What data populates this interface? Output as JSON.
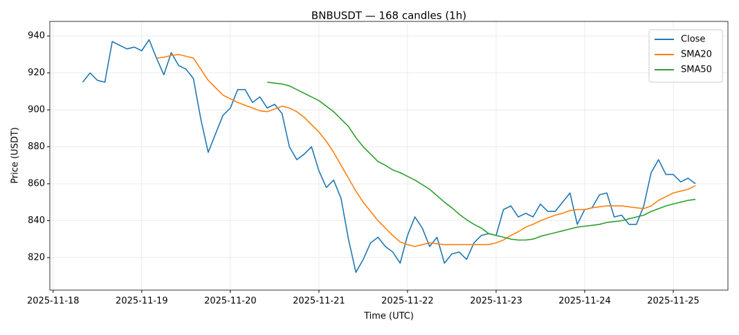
{
  "chart_data": {
    "type": "line",
    "title": "BNBUSDT — 168 candles (1h)",
    "xlabel": "Time (UTC)",
    "ylabel": "Price (USDT)",
    "x": [
      8,
      10,
      12,
      14,
      16,
      18,
      20,
      22,
      24,
      26,
      28,
      30,
      32,
      34,
      36,
      38,
      40,
      42,
      44,
      46,
      48,
      50,
      52,
      54,
      56,
      58,
      60,
      62,
      64,
      66,
      68,
      70,
      72,
      74,
      76,
      78,
      80,
      82,
      84,
      86,
      88,
      90,
      92,
      94,
      96,
      98,
      100,
      102,
      104,
      106,
      108,
      110,
      112,
      114,
      116,
      118,
      120,
      122,
      124,
      126,
      128,
      130,
      132,
      134,
      136,
      138,
      140,
      142,
      144,
      146,
      148,
      150,
      152,
      154,
      156,
      158,
      160,
      162,
      164,
      166,
      168,
      170,
      172,
      174
    ],
    "series": [
      {
        "name": "Close",
        "color": "#1f77b4",
        "values": [
          915,
          920,
          916,
          915,
          937,
          935,
          933,
          934,
          932,
          938,
          928,
          919,
          931,
          924,
          922,
          917,
          895,
          877,
          887,
          897,
          901,
          911,
          911,
          904,
          907,
          901,
          903,
          898,
          880,
          873,
          876,
          880,
          867,
          858,
          862,
          852,
          830,
          812,
          819,
          828,
          831,
          826,
          823,
          817,
          832,
          842,
          836,
          826,
          831,
          817,
          822,
          823,
          819,
          828,
          832,
          833,
          832,
          846,
          848,
          842,
          844,
          842,
          849,
          845,
          845,
          850,
          855,
          838,
          846,
          847,
          854,
          855,
          842,
          843,
          838,
          838,
          848,
          866,
          873,
          865,
          865,
          861,
          863,
          860
        ]
      },
      {
        "name": "SMA20",
        "color": "#ff7f0e",
        "values": [
          null,
          null,
          null,
          null,
          null,
          null,
          null,
          null,
          null,
          null,
          928,
          928.5,
          929.5,
          930,
          929,
          928,
          922,
          916,
          912,
          908,
          906,
          904,
          902.5,
          901,
          899.5,
          899,
          900.5,
          902,
          901,
          899,
          896,
          892,
          888,
          883,
          877,
          870,
          863,
          856,
          850,
          845,
          840,
          836,
          832,
          828.5,
          827,
          826,
          827,
          828,
          827.5,
          827,
          827,
          827,
          827,
          827,
          827,
          827,
          828,
          829.5,
          832,
          834,
          836.5,
          838,
          840,
          841.5,
          843,
          844,
          845.5,
          846,
          846,
          847,
          847.5,
          848,
          848,
          848,
          847.5,
          847,
          846.5,
          848,
          851,
          853,
          855,
          856,
          857,
          859
        ]
      },
      {
        "name": "SMA50",
        "color": "#2ca02c",
        "values": [
          null,
          null,
          null,
          null,
          null,
          null,
          null,
          null,
          null,
          null,
          null,
          null,
          null,
          null,
          null,
          null,
          null,
          null,
          null,
          null,
          null,
          null,
          null,
          null,
          null,
          915,
          914.5,
          914,
          913,
          911,
          909,
          907,
          905,
          902,
          899,
          895,
          891,
          885,
          880,
          876,
          872,
          870,
          867.5,
          866,
          864,
          862,
          859.5,
          857,
          853.5,
          850,
          847,
          843.5,
          840.5,
          838,
          836,
          833,
          832,
          831,
          830,
          829.5,
          829.5,
          830,
          831.5,
          832.5,
          833.5,
          834.5,
          835.5,
          836.5,
          837,
          837.5,
          838,
          839,
          839.5,
          840,
          841,
          842,
          843,
          845,
          846.5,
          848,
          849,
          850,
          851,
          851.5
        ]
      }
    ],
    "xlim": [
      -0.9,
      182.8
    ],
    "xticks": [
      {
        "value": 0,
        "label": "2025-11-18"
      },
      {
        "value": 24,
        "label": "2025-11-19"
      },
      {
        "value": 48,
        "label": "2025-11-20"
      },
      {
        "value": 72,
        "label": "2025-11-21"
      },
      {
        "value": 96,
        "label": "2025-11-22"
      },
      {
        "value": 120,
        "label": "2025-11-23"
      },
      {
        "value": 144,
        "label": "2025-11-24"
      },
      {
        "value": 168,
        "label": "2025-11-25"
      }
    ],
    "ylim": [
      802.4,
      947.9
    ],
    "yticks": [
      820,
      840,
      860,
      880,
      900,
      920,
      940
    ],
    "grid": true,
    "legend": "upper right"
  }
}
